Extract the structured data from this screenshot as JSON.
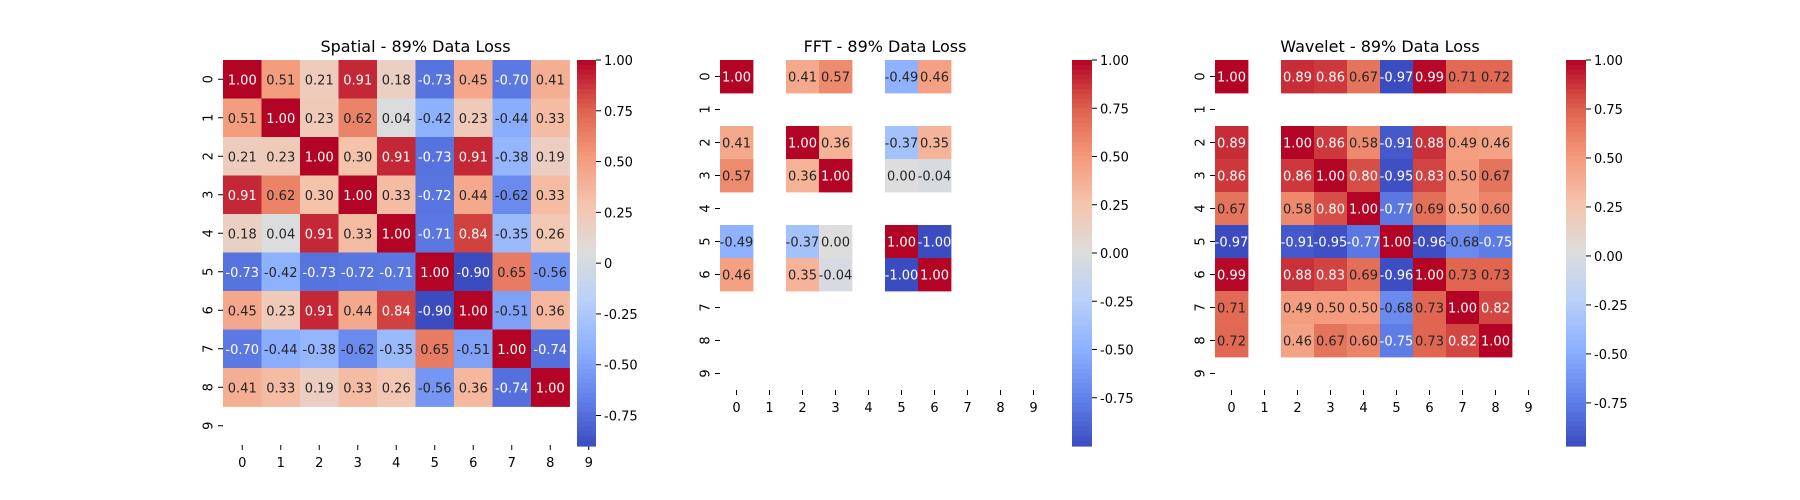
{
  "chart_data": [
    {
      "type": "heatmap",
      "title": "Spatial - 89% Data Loss",
      "x_ticks": [
        "0",
        "1",
        "2",
        "3",
        "4",
        "5",
        "6",
        "7",
        "8",
        "9"
      ],
      "y_ticks": [
        "0",
        "1",
        "2",
        "3",
        "4",
        "5",
        "6",
        "7",
        "8",
        "9"
      ],
      "colormap": "coolwarm",
      "vmin": -0.9,
      "vmax": 1.0,
      "colorbar_ticks": [
        "1.00",
        "0.75",
        "0.50",
        "0.25",
        "0",
        "-0.25",
        "-0.50",
        "-0.75"
      ],
      "colorbar_tick_values": [
        1.0,
        0.75,
        0.5,
        0.25,
        0.0,
        -0.25,
        -0.5,
        -0.75
      ],
      "matrix": [
        [
          1.0,
          0.51,
          0.21,
          0.91,
          0.18,
          -0.73,
          0.45,
          -0.7,
          0.41,
          null
        ],
        [
          0.51,
          1.0,
          0.23,
          0.62,
          0.04,
          -0.42,
          0.23,
          -0.44,
          0.33,
          null
        ],
        [
          0.21,
          0.23,
          1.0,
          0.3,
          0.91,
          -0.73,
          0.91,
          -0.38,
          0.19,
          null
        ],
        [
          0.91,
          0.62,
          0.3,
          1.0,
          0.33,
          -0.72,
          0.44,
          -0.62,
          0.33,
          null
        ],
        [
          0.18,
          0.04,
          0.91,
          0.33,
          1.0,
          -0.71,
          0.84,
          -0.35,
          0.26,
          null
        ],
        [
          -0.73,
          -0.42,
          -0.73,
          -0.72,
          -0.71,
          1.0,
          -0.9,
          0.65,
          -0.56,
          null
        ],
        [
          0.45,
          0.23,
          0.91,
          0.44,
          0.84,
          -0.9,
          1.0,
          -0.51,
          0.36,
          null
        ],
        [
          -0.7,
          -0.44,
          -0.38,
          -0.62,
          -0.35,
          0.65,
          -0.51,
          1.0,
          -0.74,
          null
        ],
        [
          0.41,
          0.33,
          0.19,
          0.33,
          0.26,
          -0.56,
          0.36,
          -0.74,
          1.0,
          null
        ],
        [
          null,
          null,
          null,
          null,
          null,
          null,
          null,
          null,
          null,
          null
        ]
      ],
      "labels": [
        [
          "1.00",
          "0.51",
          "0.21",
          "0.91",
          "0.18",
          "-0.73",
          "0.45",
          "-0.70",
          "0.41",
          null
        ],
        [
          "0.51",
          "1.00",
          "0.23",
          "0.62",
          "0.04",
          "-0.42",
          "0.23",
          "-0.44",
          "0.33",
          null
        ],
        [
          "0.21",
          "0.23",
          "1.00",
          "0.30",
          "0.91",
          "-0.73",
          "0.91",
          "-0.38",
          "0.19",
          null
        ],
        [
          "0.91",
          "0.62",
          "0.30",
          "1.00",
          "0.33",
          "-0.72",
          "0.44",
          "-0.62",
          "0.33",
          null
        ],
        [
          "0.18",
          "0.04",
          "0.91",
          "0.33",
          "1.00",
          "-0.71",
          "0.84",
          "-0.35",
          "0.26",
          null
        ],
        [
          "-0.73",
          "-0.42",
          "-0.73",
          "-0.72",
          "-0.71",
          "1.00",
          "-0.90",
          "0.65",
          "-0.56",
          null
        ],
        [
          "0.45",
          "0.23",
          "0.91",
          "0.44",
          "0.84",
          "-0.90",
          "1.00",
          "-0.51",
          "0.36",
          null
        ],
        [
          "-0.70",
          "-0.44",
          "-0.38",
          "-0.62",
          "-0.35",
          "0.65",
          "-0.51",
          "1.00",
          "-0.74",
          null
        ],
        [
          "0.41",
          "0.33",
          "0.19",
          "0.33",
          "0.26",
          "-0.56",
          "0.36",
          "-0.74",
          "1.00",
          null
        ],
        [
          null,
          null,
          null,
          null,
          null,
          null,
          null,
          null,
          null,
          null
        ]
      ]
    },
    {
      "type": "heatmap",
      "title": "FFT - 89% Data Loss",
      "x_ticks": [
        "0",
        "1",
        "2",
        "3",
        "4",
        "5",
        "6",
        "7",
        "8",
        "9"
      ],
      "y_ticks": [
        "0",
        "1",
        "2",
        "3",
        "4",
        "5",
        "6",
        "7",
        "8",
        "9"
      ],
      "colormap": "coolwarm",
      "vmin": -1.0,
      "vmax": 1.0,
      "colorbar_ticks": [
        "1.00",
        "0.75",
        "0.50",
        "0.25",
        "0.00",
        "-0.25",
        "-0.50",
        "-0.75"
      ],
      "colorbar_tick_values": [
        1.0,
        0.75,
        0.5,
        0.25,
        0.0,
        -0.25,
        -0.5,
        -0.75
      ],
      "matrix": [
        [
          1.0,
          null,
          0.41,
          0.57,
          null,
          -0.49,
          0.46,
          null,
          null,
          null
        ],
        [
          null,
          null,
          null,
          null,
          null,
          null,
          null,
          null,
          null,
          null
        ],
        [
          0.41,
          null,
          1.0,
          0.36,
          null,
          -0.37,
          0.35,
          null,
          null,
          null
        ],
        [
          0.57,
          null,
          0.36,
          1.0,
          null,
          0.0,
          -0.04,
          null,
          null,
          null
        ],
        [
          null,
          null,
          null,
          null,
          null,
          null,
          null,
          null,
          null,
          null
        ],
        [
          -0.49,
          null,
          -0.37,
          0.0,
          null,
          1.0,
          -1.0,
          null,
          null,
          null
        ],
        [
          0.46,
          null,
          0.35,
          -0.04,
          null,
          -1.0,
          1.0,
          null,
          null,
          null
        ],
        [
          null,
          null,
          null,
          null,
          null,
          null,
          null,
          null,
          null,
          null
        ],
        [
          null,
          null,
          null,
          null,
          null,
          null,
          null,
          null,
          null,
          null
        ],
        [
          null,
          null,
          null,
          null,
          null,
          null,
          null,
          null,
          null,
          null
        ]
      ],
      "labels": [
        [
          "1.00",
          null,
          "0.41",
          "0.57",
          null,
          "-0.49",
          "0.46",
          null,
          null,
          null
        ],
        [
          null,
          null,
          null,
          null,
          null,
          null,
          null,
          null,
          null,
          null
        ],
        [
          "0.41",
          null,
          "1.00",
          "0.36",
          null,
          "-0.37",
          "0.35",
          null,
          null,
          null
        ],
        [
          "0.57",
          null,
          "0.36",
          "1.00",
          null,
          "0.00",
          "-0.04",
          null,
          null,
          null
        ],
        [
          null,
          null,
          null,
          null,
          null,
          null,
          null,
          null,
          null,
          null
        ],
        [
          "-0.49",
          null,
          "-0.37",
          "0.00",
          null,
          "1.00",
          "-1.00",
          null,
          null,
          null
        ],
        [
          "0.46",
          null,
          "0.35",
          "-0.04",
          null,
          "-1.00",
          "1.00",
          null,
          null,
          null
        ],
        [
          null,
          null,
          null,
          null,
          null,
          null,
          null,
          null,
          null,
          null
        ],
        [
          null,
          null,
          null,
          null,
          null,
          null,
          null,
          null,
          null,
          null
        ],
        [
          null,
          null,
          null,
          null,
          null,
          null,
          null,
          null,
          null,
          null
        ]
      ]
    },
    {
      "type": "heatmap",
      "title": "Wavelet - 89% Data Loss",
      "x_ticks": [
        "0",
        "1",
        "2",
        "3",
        "4",
        "5",
        "6",
        "7",
        "8",
        "9"
      ],
      "y_ticks": [
        "0",
        "1",
        "2",
        "3",
        "4",
        "5",
        "6",
        "7",
        "8",
        "9"
      ],
      "colormap": "coolwarm",
      "vmin": -0.97,
      "vmax": 1.0,
      "colorbar_ticks": [
        "1.00",
        "0.75",
        "0.50",
        "0.25",
        "0.00",
        "-0.25",
        "-0.50",
        "-0.75"
      ],
      "colorbar_tick_values": [
        1.0,
        0.75,
        0.5,
        0.25,
        0.0,
        -0.25,
        -0.5,
        -0.75
      ],
      "matrix": [
        [
          1.0,
          null,
          0.89,
          0.86,
          0.67,
          -0.97,
          0.99,
          0.71,
          0.72,
          null
        ],
        [
          null,
          null,
          null,
          null,
          null,
          null,
          null,
          null,
          null,
          null
        ],
        [
          0.89,
          null,
          1.0,
          0.86,
          0.58,
          -0.91,
          0.88,
          0.49,
          0.46,
          null
        ],
        [
          0.86,
          null,
          0.86,
          1.0,
          0.8,
          -0.95,
          0.83,
          0.5,
          0.67,
          null
        ],
        [
          0.67,
          null,
          0.58,
          0.8,
          1.0,
          -0.77,
          0.69,
          0.5,
          0.6,
          null
        ],
        [
          -0.97,
          null,
          -0.91,
          -0.95,
          -0.77,
          1.0,
          -0.96,
          -0.68,
          -0.75,
          null
        ],
        [
          0.99,
          null,
          0.88,
          0.83,
          0.69,
          -0.96,
          1.0,
          0.73,
          0.73,
          null
        ],
        [
          0.71,
          null,
          0.49,
          0.5,
          0.5,
          -0.68,
          0.73,
          1.0,
          0.82,
          null
        ],
        [
          0.72,
          null,
          0.46,
          0.67,
          0.6,
          -0.75,
          0.73,
          0.82,
          1.0,
          null
        ],
        [
          null,
          null,
          null,
          null,
          null,
          null,
          null,
          null,
          null,
          null
        ]
      ],
      "labels": [
        [
          "1.00",
          null,
          "0.89",
          "0.86",
          "0.67",
          "-0.97",
          "0.99",
          "0.71",
          "0.72",
          null
        ],
        [
          null,
          null,
          null,
          null,
          null,
          null,
          null,
          null,
          null,
          null
        ],
        [
          "0.89",
          null,
          "1.00",
          "0.86",
          "0.58",
          "-0.91",
          "0.88",
          "0.49",
          "0.46",
          null
        ],
        [
          "0.86",
          null,
          "0.86",
          "1.00",
          "0.80",
          "-0.95",
          "0.83",
          "0.50",
          "0.67",
          null
        ],
        [
          "0.67",
          null,
          "0.58",
          "0.80",
          "1.00",
          "-0.77",
          "0.69",
          "0.50",
          "0.60",
          null
        ],
        [
          "-0.97",
          null,
          "-0.91",
          "-0.95",
          "-0.77",
          "1.00",
          "-0.96",
          "-0.68",
          "-0.75",
          null
        ],
        [
          "0.99",
          null,
          "0.88",
          "0.83",
          "0.69",
          "-0.96",
          "1.00",
          "0.73",
          "0.73",
          null
        ],
        [
          "0.71",
          null,
          "0.49",
          "0.50",
          "0.50",
          "-0.68",
          "0.73",
          "1.00",
          "0.82",
          null
        ],
        [
          "0.72",
          null,
          "0.46",
          "0.67",
          "0.60",
          "-0.75",
          "0.73",
          "0.82",
          "1.00",
          null
        ],
        [
          null,
          null,
          null,
          null,
          null,
          null,
          null,
          null,
          null,
          null
        ]
      ]
    }
  ]
}
